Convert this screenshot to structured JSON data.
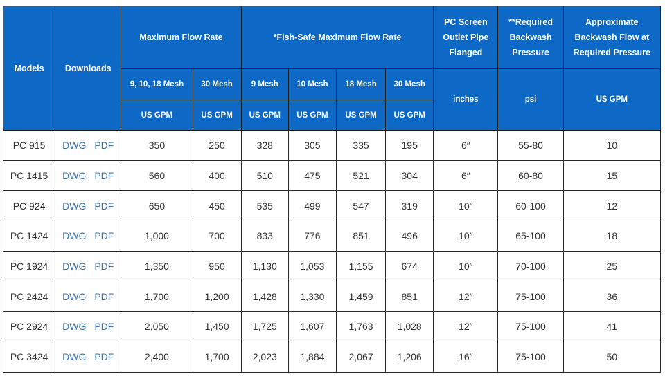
{
  "table": {
    "headers": {
      "models": "Models",
      "downloads": "Downloads",
      "max_flow": "Maximum Flow Rate",
      "fish_safe": "*Fish-Safe Maximum Flow Rate",
      "outlet": "PC Screen Outlet Pipe Flanged",
      "backwash_pressure": "**Required Backwash Pressure",
      "backwash_flow": "Approximate Backwash Flow at Required Pressure"
    },
    "mesh": [
      "9, 10, 18 Mesh",
      "30 Mesh",
      "9 Mesh",
      "10 Mesh",
      "18 Mesh",
      "30 Mesh"
    ],
    "units": {
      "gpm": "US GPM",
      "inches": "inches",
      "psi": "psi",
      "backwash_gpm": "US GPM"
    },
    "rows": [
      {
        "model": "PC 915",
        "dwg": "DWG",
        "pdf": "PDF",
        "max_9_10_18": "350",
        "max_30": "250",
        "fs_9": "328",
        "fs_10": "305",
        "fs_18": "335",
        "fs_30": "195",
        "outlet": "6″",
        "pressure": "55-80",
        "backwash": "10"
      },
      {
        "model": "PC 1415",
        "dwg": "DWG",
        "pdf": "PDF",
        "max_9_10_18": "560",
        "max_30": "400",
        "fs_9": "510",
        "fs_10": "475",
        "fs_18": "521",
        "fs_30": "304",
        "outlet": "6″",
        "pressure": "60-80",
        "backwash": "15"
      },
      {
        "model": "PC 924",
        "dwg": "DWG",
        "pdf": "PDF",
        "max_9_10_18": "650",
        "max_30": "450",
        "fs_9": "535",
        "fs_10": "499",
        "fs_18": "547",
        "fs_30": "319",
        "outlet": "10″",
        "pressure": "60-100",
        "backwash": "12"
      },
      {
        "model": "PC 1424",
        "dwg": "DWG",
        "pdf": "PDF",
        "max_9_10_18": "1,000",
        "max_30": "700",
        "fs_9": "833",
        "fs_10": "776",
        "fs_18": "851",
        "fs_30": "496",
        "outlet": "10″",
        "pressure": "65-100",
        "backwash": "18"
      },
      {
        "model": "PC 1924",
        "dwg": "DWG",
        "pdf": "PDF",
        "max_9_10_18": "1,350",
        "max_30": "950",
        "fs_9": "1,130",
        "fs_10": "1,053",
        "fs_18": "1,155",
        "fs_30": "674",
        "outlet": "10″",
        "pressure": "70-100",
        "backwash": "25"
      },
      {
        "model": "PC 2424",
        "dwg": "DWG",
        "pdf": "PDF",
        "max_9_10_18": "1,700",
        "max_30": "1,200",
        "fs_9": "1,428",
        "fs_10": "1,330",
        "fs_18": "1,459",
        "fs_30": "851",
        "outlet": "12″",
        "pressure": "75-100",
        "backwash": "36"
      },
      {
        "model": "PC 2924",
        "dwg": "DWG",
        "pdf": "PDF",
        "max_9_10_18": "2,050",
        "max_30": "1,450",
        "fs_9": "1,725",
        "fs_10": "1,607",
        "fs_18": "1,763",
        "fs_30": "1,028",
        "outlet": "12″",
        "pressure": "75-100",
        "backwash": "41"
      },
      {
        "model": "PC 3424",
        "dwg": "DWG",
        "pdf": "PDF",
        "max_9_10_18": "2,400",
        "max_30": "1,700",
        "fs_9": "2,023",
        "fs_10": "1,884",
        "fs_18": "2,067",
        "fs_30": "1,206",
        "outlet": "16″",
        "pressure": "75-100",
        "backwash": "50"
      }
    ]
  }
}
